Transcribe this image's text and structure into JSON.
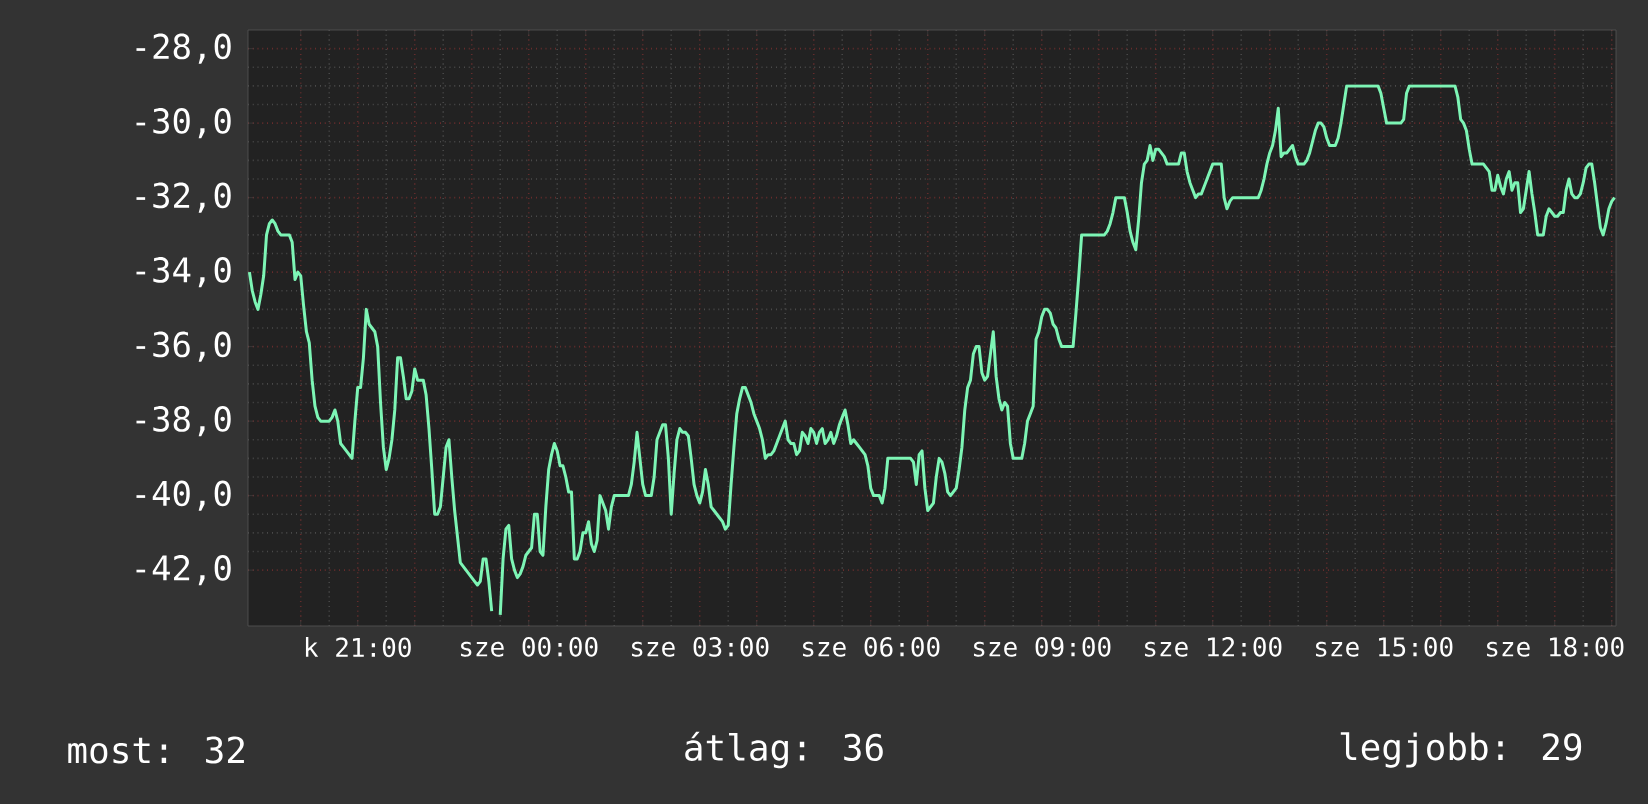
{
  "chart_data": {
    "type": "line",
    "categories": [
      null,
      null,
      null,
      null,
      null,
      null,
      null,
      null,
      null,
      null,
      null,
      null,
      null,
      null,
      null,
      null,
      null,
      null,
      null,
      null,
      null,
      null,
      null,
      null,
      null,
      null,
      null,
      null,
      null,
      null,
      null,
      null,
      null,
      null,
      null,
      null,
      null,
      null,
      "k 21:00",
      null,
      null,
      null,
      null,
      null,
      null,
      null,
      null,
      null,
      null,
      null,
      null,
      null,
      null,
      null,
      null,
      null,
      null,
      null,
      null,
      null,
      null,
      null,
      null,
      null,
      null,
      null,
      null,
      null,
      null,
      null,
      null,
      null,
      null,
      null,
      null,
      null,
      null,
      null,
      null,
      null,
      null,
      null,
      null,
      null,
      null,
      null,
      null,
      null,
      null,
      null,
      null,
      null,
      null,
      null,
      null,
      null,
      null,
      null,
      "sze 00:00",
      null,
      null,
      null,
      null,
      null,
      null,
      null,
      null,
      null,
      null,
      null,
      null,
      null,
      null,
      null,
      null,
      null,
      null,
      null,
      null,
      null,
      null,
      null,
      null,
      null,
      null,
      null,
      null,
      null,
      null,
      null,
      null,
      null,
      null,
      null,
      null,
      null,
      null,
      null,
      null,
      null,
      null,
      null,
      null,
      null,
      null,
      null,
      null,
      null,
      null,
      null,
      null,
      null,
      null,
      null,
      null,
      null,
      null,
      null,
      "sze 03:00",
      null,
      null,
      null,
      null,
      null,
      null,
      null,
      null,
      null,
      null,
      null,
      null,
      null,
      null,
      null,
      null,
      null,
      null,
      null,
      null,
      null,
      null,
      null,
      null,
      null,
      null,
      null,
      null,
      null,
      null,
      null,
      null,
      null,
      null,
      null,
      null,
      null,
      null,
      null,
      null,
      null,
      null,
      null,
      null,
      null,
      null,
      null,
      null,
      null,
      null,
      null,
      null,
      null,
      null,
      null,
      null,
      null,
      null,
      null,
      "sze 06:00",
      null,
      null,
      null,
      null,
      null,
      null,
      null,
      null,
      null,
      null,
      null,
      null,
      null,
      null,
      null,
      null,
      null,
      null,
      null,
      null,
      null,
      null,
      null,
      null,
      null,
      null,
      null,
      null,
      null,
      null,
      null,
      null,
      null,
      null,
      null,
      null,
      null,
      null,
      null,
      null,
      null,
      null,
      null,
      null,
      null,
      null,
      null,
      null,
      null,
      null,
      null,
      null,
      null,
      null,
      null,
      null,
      null,
      null,
      null,
      "sze 09:00",
      null,
      null,
      null,
      null,
      null,
      null,
      null,
      null,
      null,
      null,
      null,
      null,
      null,
      null,
      null,
      null,
      null,
      null,
      null,
      null,
      null,
      null,
      null,
      null,
      null,
      null,
      null,
      null,
      null,
      null,
      null,
      null,
      null,
      null,
      null,
      null,
      null,
      null,
      null,
      null,
      null,
      null,
      null,
      null,
      null,
      null,
      null,
      null,
      null,
      null,
      null,
      null,
      null,
      null,
      null,
      null,
      null,
      null,
      null,
      "sze 12:00",
      null,
      null,
      null,
      null,
      null,
      null,
      null,
      null,
      null,
      null,
      null,
      null,
      null,
      null,
      null,
      null,
      null,
      null,
      null,
      null,
      null,
      null,
      null,
      null,
      null,
      null,
      null,
      null,
      null,
      null,
      null,
      null,
      null,
      null,
      null,
      null,
      null,
      null,
      null,
      null,
      null,
      null,
      null,
      null,
      null,
      null,
      null,
      null,
      null,
      null,
      null,
      null,
      null,
      null,
      null,
      null,
      null,
      null,
      null,
      "sze 15:00",
      null,
      null,
      null,
      null,
      null,
      null,
      null,
      null,
      null,
      null,
      null,
      null,
      null,
      null,
      null,
      null,
      null,
      null,
      null,
      null,
      null,
      null,
      null,
      null,
      null,
      null,
      null,
      null,
      null,
      null,
      null,
      null,
      null,
      null,
      null,
      null,
      null,
      null,
      null,
      null,
      null,
      null,
      null,
      null,
      null,
      null,
      null,
      null,
      null,
      null,
      null,
      null,
      null,
      null,
      null,
      null,
      null,
      null,
      null,
      "sze 18:00",
      null,
      null,
      null,
      null,
      null,
      null,
      null,
      null,
      null,
      null,
      null,
      null,
      null,
      null,
      null,
      null,
      null,
      null,
      null,
      null,
      null
    ],
    "series": [
      {
        "color": "#7df5b5",
        "values": [
          -34.0,
          -34.5,
          -34.8,
          -35.0,
          -34.6,
          -34.1,
          -33.0,
          -32.7,
          -32.6,
          -32.7,
          -32.9,
          -33.0,
          -33.0,
          -33.0,
          -33.0,
          -33.2,
          -34.2,
          -34.0,
          -34.1,
          -34.9,
          -35.6,
          -35.9,
          -36.9,
          -37.6,
          -37.9,
          -38.0,
          -38.0,
          -38.0,
          -38.0,
          -37.9,
          -37.7,
          -38.0,
          -38.6,
          -38.7,
          -38.8,
          -38.9,
          -39.0,
          -38.0,
          -37.1,
          -37.1,
          -36.3,
          -35.0,
          -35.4,
          -35.5,
          -35.6,
          -36.0,
          -37.5,
          -38.7,
          -39.3,
          -39.0,
          -38.5,
          -37.7,
          -36.3,
          -36.3,
          -36.8,
          -37.4,
          -37.4,
          -37.2,
          -36.6,
          -36.9,
          -36.9,
          -36.9,
          -37.3,
          -38.2,
          -39.3,
          -40.5,
          -40.5,
          -40.3,
          -39.5,
          -38.7,
          -38.5,
          -39.5,
          -40.4,
          -41.1,
          -41.8,
          -41.9,
          -42.0,
          -42.1,
          -42.2,
          -42.3,
          -42.4,
          -42.3,
          -41.7,
          -41.7,
          -42.3,
          -43.1,
          null,
          null,
          -43.2,
          -41.7,
          -40.9,
          -40.8,
          -41.7,
          -42.0,
          -42.2,
          -42.1,
          -41.9,
          -41.6,
          -41.5,
          -41.4,
          -40.5,
          -40.5,
          -41.5,
          -41.6,
          -40.3,
          -39.3,
          -38.9,
          -38.6,
          -38.8,
          -39.2,
          -39.2,
          -39.5,
          -39.9,
          -39.9,
          -41.7,
          -41.7,
          -41.5,
          -41.0,
          -41.0,
          -40.7,
          -41.3,
          -41.5,
          -41.2,
          -40.0,
          -40.2,
          -40.4,
          -40.9,
          -40.3,
          -40.0,
          -40.0,
          -40.0,
          -40.0,
          -40.0,
          -40.0,
          -39.7,
          -39.1,
          -38.3,
          -39.0,
          -39.7,
          -40.0,
          -40.0,
          -40.0,
          -39.5,
          -38.5,
          -38.3,
          -38.1,
          -38.1,
          -39.0,
          -40.5,
          -39.4,
          -38.5,
          -38.2,
          -38.3,
          -38.3,
          -38.4,
          -39.0,
          -39.7,
          -40.0,
          -40.2,
          -39.9,
          -39.3,
          -39.7,
          -40.3,
          -40.4,
          -40.5,
          -40.6,
          -40.7,
          -40.9,
          -40.8,
          -39.7,
          -38.7,
          -37.8,
          -37.4,
          -37.1,
          -37.1,
          -37.3,
          -37.5,
          -37.8,
          -38.0,
          -38.2,
          -38.5,
          -39.0,
          -38.9,
          -38.9,
          -38.8,
          -38.6,
          -38.4,
          -38.2,
          -38.0,
          -38.5,
          -38.6,
          -38.6,
          -38.9,
          -38.8,
          -38.3,
          -38.4,
          -38.6,
          -38.2,
          -38.3,
          -38.6,
          -38.3,
          -38.2,
          -38.6,
          -38.5,
          -38.3,
          -38.6,
          -38.4,
          -38.1,
          -37.9,
          -37.7,
          -38.1,
          -38.6,
          -38.5,
          -38.6,
          -38.7,
          -38.8,
          -38.9,
          -39.2,
          -39.8,
          -40.0,
          -40.0,
          -40.0,
          -40.2,
          -39.8,
          -39.0,
          -39.0,
          -39.0,
          -39.0,
          -39.0,
          -39.0,
          -39.0,
          -39.0,
          -39.0,
          -39.1,
          -39.7,
          -38.9,
          -38.8,
          -39.8,
          -40.4,
          -40.3,
          -40.2,
          -39.5,
          -39.0,
          -39.1,
          -39.4,
          -39.9,
          -40.0,
          -39.9,
          -39.8,
          -39.3,
          -38.7,
          -37.7,
          -37.1,
          -36.9,
          -36.2,
          -36.0,
          -36.0,
          -36.7,
          -36.9,
          -36.8,
          -36.2,
          -35.6,
          -36.8,
          -37.4,
          -37.7,
          -37.5,
          -37.6,
          -38.6,
          -39.0,
          -39.0,
          -39.0,
          -39.0,
          -38.6,
          -38.0,
          -37.8,
          -37.6,
          -35.8,
          -35.6,
          -35.2,
          -35.0,
          -35.0,
          -35.1,
          -35.4,
          -35.5,
          -35.8,
          -36.0,
          -36.0,
          -36.0,
          -36.0,
          -36.0,
          -35.1,
          -34.1,
          -33.0,
          -33.0,
          -33.0,
          -33.0,
          -33.0,
          -33.0,
          -33.0,
          -33.0,
          -33.0,
          -32.9,
          -32.7,
          -32.4,
          -32.0,
          -32.0,
          -32.0,
          -32.0,
          -32.4,
          -32.9,
          -33.2,
          -33.4,
          -32.6,
          -31.6,
          -31.1,
          -31.0,
          -30.6,
          -31.0,
          -30.7,
          -30.7,
          -30.8,
          -30.9,
          -31.1,
          -31.1,
          -31.1,
          -31.1,
          -31.1,
          -30.8,
          -30.8,
          -31.3,
          -31.6,
          -31.8,
          -32.0,
          -31.9,
          -31.9,
          -31.7,
          -31.5,
          -31.3,
          -31.1,
          -31.1,
          -31.1,
          -31.1,
          -32.0,
          -32.3,
          -32.1,
          -32.0,
          -32.0,
          -32.0,
          -32.0,
          -32.0,
          -32.0,
          -32.0,
          -32.0,
          -32.0,
          -32.0,
          -31.8,
          -31.5,
          -31.1,
          -30.8,
          -30.6,
          -30.2,
          -29.6,
          -30.9,
          -30.8,
          -30.8,
          -30.7,
          -30.6,
          -30.9,
          -31.1,
          -31.1,
          -31.1,
          -31.0,
          -30.8,
          -30.5,
          -30.2,
          -30.0,
          -30.0,
          -30.1,
          -30.4,
          -30.6,
          -30.6,
          -30.6,
          -30.4,
          -30.0,
          -29.5,
          -29.0,
          -29.0,
          -29.0,
          -29.0,
          -29.0,
          -29.0,
          -29.0,
          -29.0,
          -29.0,
          -29.0,
          -29.0,
          -29.0,
          -29.2,
          -29.6,
          -30.0,
          -30.0,
          -30.0,
          -30.0,
          -30.0,
          -30.0,
          -29.9,
          -29.2,
          -29.0,
          -29.0,
          -29.0,
          -29.0,
          -29.0,
          -29.0,
          -29.0,
          -29.0,
          -29.0,
          -29.0,
          -29.0,
          -29.0,
          -29.0,
          -29.0,
          -29.0,
          -29.0,
          -29.0,
          -29.3,
          -29.9,
          -30.0,
          -30.2,
          -30.7,
          -31.1,
          -31.1,
          -31.1,
          -31.1,
          -31.1,
          -31.2,
          -31.3,
          -31.8,
          -31.8,
          -31.4,
          -31.7,
          -31.9,
          -31.5,
          -31.3,
          -31.8,
          -31.6,
          -31.6,
          -32.4,
          -32.3,
          -31.8,
          -31.3,
          -31.9,
          -32.4,
          -33.0,
          -33.0,
          -33.0,
          -32.5,
          -32.3,
          -32.4,
          -32.5,
          -32.5,
          -32.4,
          -32.4,
          -31.8,
          -31.5,
          -31.9,
          -32.0,
          -32.0,
          -31.9,
          -31.6,
          -31.2,
          -31.1,
          -31.1,
          -31.6,
          -32.2,
          -32.8,
          -33.0,
          -32.7,
          -32.3,
          -32.1,
          -32.0
        ]
      }
    ],
    "ylim": [
      -43.5,
      -27.5
    ],
    "yticks": [
      {
        "value": -42,
        "label": "-42,0"
      },
      {
        "value": -40,
        "label": "-40,0"
      },
      {
        "value": -38,
        "label": "-38,0"
      },
      {
        "value": -36,
        "label": "-36,0"
      },
      {
        "value": -34,
        "label": "-34,0"
      },
      {
        "value": -32,
        "label": "-32,0"
      },
      {
        "value": -30,
        "label": "-30,0"
      },
      {
        "value": -28,
        "label": "-28,0"
      }
    ],
    "annotations": [
      "most: 32",
      "átlag: 36",
      "legjobb: 29"
    ],
    "grid": true,
    "marker": "none",
    "line_style": "solid"
  }
}
